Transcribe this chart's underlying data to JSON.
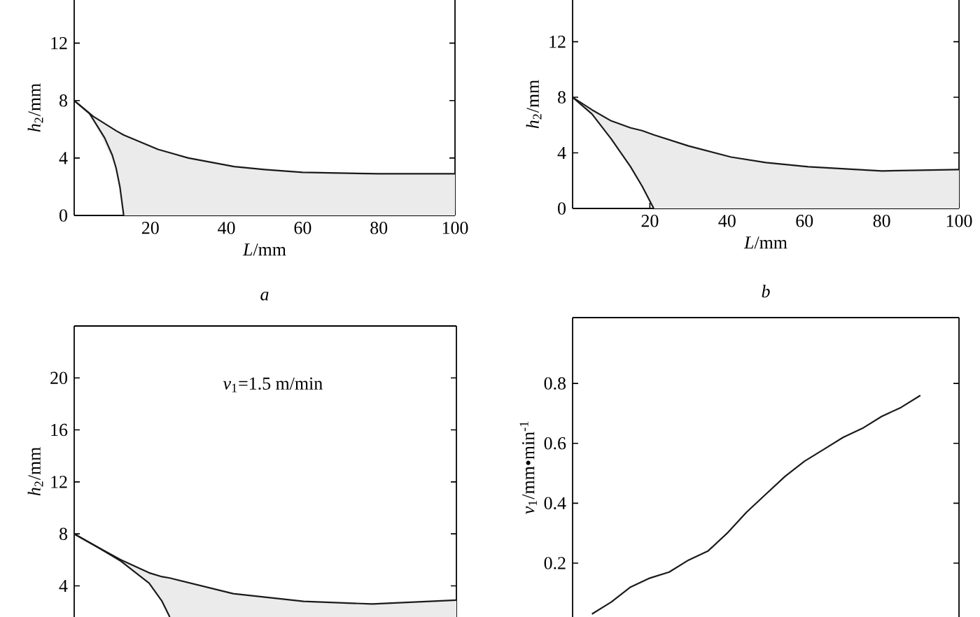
{
  "chart_data": [
    {
      "type": "line",
      "xlabel": "*L*/mm",
      "ylabel": "*h*$_{2}$/mm",
      "xlim": [
        0,
        100
      ],
      "ylim": [
        0,
        15
      ],
      "xticks": [
        20,
        40,
        60,
        80,
        100
      ],
      "yticks": [
        0,
        4,
        8,
        12
      ],
      "annotations": [
        "a"
      ],
      "series": [
        {
          "color": "#1a1a1a",
          "x": [
            0,
            5,
            11,
            13,
            22,
            30,
            42,
            50,
            60,
            80,
            100
          ],
          "values": [
            8,
            6.9,
            5.9,
            5.6,
            4.6,
            4.0,
            3.4,
            3.2,
            3.0,
            2.9,
            2.9
          ],
          "upper": [
            8,
            6.9,
            5.9,
            5.6,
            4.6,
            4.0,
            3.4,
            3.2,
            3.0,
            2.9,
            2.9
          ],
          "lower": [
            8,
            6.7,
            3.3,
            0,
            0,
            0,
            0,
            0,
            0,
            0,
            0
          ]
        },
        {
          "color": "#1a1a1a",
          "x": [
            0,
            4,
            8,
            10,
            11,
            12,
            13
          ],
          "values": [
            8,
            7.1,
            5.4,
            4.2,
            3.3,
            2.0,
            0
          ]
        }
      ]
    },
    {
      "type": "line",
      "xlabel": "*L*/mm",
      "ylabel": "*h*$_{2}$/mm",
      "xlim": [
        0,
        100
      ],
      "ylim": [
        0,
        15
      ],
      "xticks": [
        20,
        40,
        60,
        80,
        100
      ],
      "yticks": [
        0,
        4,
        8,
        12
      ],
      "annotations": [
        "b"
      ],
      "series": [
        {
          "color": "#1a1a1a",
          "x": [
            0,
            5,
            10,
            15,
            18,
            21,
            30,
            41,
            50,
            61,
            80,
            100
          ],
          "values": [
            8,
            7.1,
            6.3,
            5.8,
            5.6,
            5.3,
            4.5,
            3.7,
            3.3,
            3.0,
            2.7,
            2.8
          ],
          "upper": [
            8,
            7.1,
            6.3,
            5.8,
            5.6,
            5.3,
            4.5,
            3.7,
            3.3,
            3.0,
            2.7,
            2.8
          ],
          "lower": [
            8,
            6.8,
            5.0,
            3.0,
            1.6,
            0,
            0,
            0,
            0,
            0,
            0,
            0
          ]
        },
        {
          "color": "#1a1a1a",
          "x": [
            0,
            5,
            10,
            15,
            18,
            21
          ],
          "values": [
            8,
            6.8,
            5.0,
            3.0,
            1.6,
            0
          ]
        }
      ]
    },
    {
      "type": "line",
      "ylabel": "*h*$_{2}$/mm",
      "xlim": [
        0,
        100
      ],
      "ylim": [
        1.6,
        24
      ],
      "yticks": [
        4,
        8,
        12,
        16,
        20
      ],
      "tick_labels": "y",
      "annotations": [
        "*v*$_{1}$=1.5 m/min"
      ],
      "series": [
        {
          "color": "#1a1a1a",
          "x": [
            0,
            6,
            12.2,
            19.6,
            23,
            25,
            41.6,
            60,
            78,
            100
          ],
          "values": [
            8,
            7.0,
            6.0,
            5.0,
            4.7,
            4.6,
            3.4,
            2.8,
            2.6,
            2.9
          ],
          "upper": [
            8,
            7.0,
            6.0,
            5.0,
            4.7,
            4.6,
            3.4,
            2.8,
            2.6,
            2.9
          ],
          "lower": [
            8,
            7.0,
            5.9,
            4.2,
            2.8,
            1.6,
            1.6,
            1.6,
            1.6,
            1.6
          ]
        },
        {
          "color": "#1a1a1a",
          "x": [
            0,
            6,
            12.2,
            19.6,
            23,
            25
          ],
          "values": [
            8,
            7.0,
            5.9,
            4.2,
            2.8,
            1.6
          ]
        }
      ]
    },
    {
      "type": "line",
      "ylabel": "*v*$_{1}$/mm•min$^{-1}$",
      "ylim": [
        0.02,
        1.02
      ],
      "yticks": [
        0.2,
        0.4,
        0.6,
        0.8
      ],
      "tick_labels": "y",
      "categories": [
        null,
        null,
        null,
        null,
        null,
        null,
        null,
        null,
        null,
        null,
        null,
        null,
        null,
        null,
        null,
        null,
        null,
        null,
        null,
        null,
        null
      ],
      "series": [
        {
          "color": "#1a1a1a",
          "values": [
            null,
            0.03,
            0.07,
            0.12,
            0.15,
            0.17,
            0.21,
            0.24,
            0.3,
            0.37,
            0.43,
            0.49,
            0.54,
            0.58,
            0.62,
            0.65,
            0.69,
            0.72,
            0.76,
            null,
            null
          ]
        }
      ]
    }
  ]
}
